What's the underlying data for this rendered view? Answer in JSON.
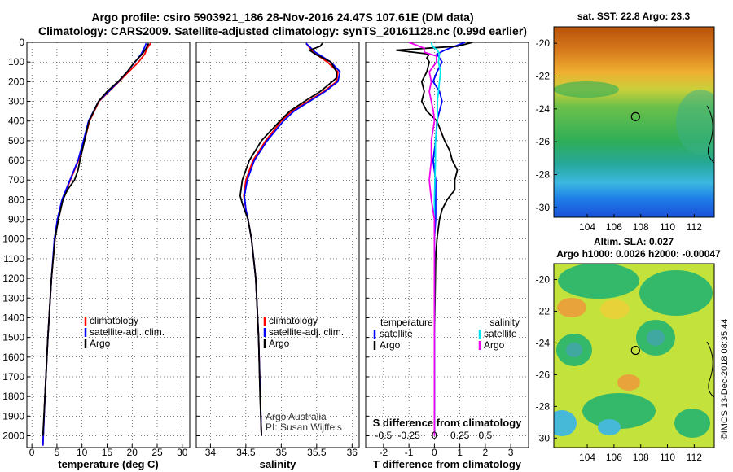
{
  "title_line1": "Argo profile: csiro 5903921_186 28-Nov-2016 24.47S 107.61E (DM data)",
  "title_line2": "Climatology: CARS2009. Satellite-adjusted climatology: synTS_20161128.nc (0.99d earlier)",
  "side_credit": "©IMOS 13-Dec-2018 08:35:44",
  "colors": {
    "climatology": "#ff0000",
    "satellite": "#0000ff",
    "argo": "#000000",
    "sat_salinity": "#00e5ee",
    "argo_salinity": "#ee00ee"
  },
  "depth_axis": {
    "ticks": [
      0,
      100,
      200,
      300,
      400,
      500,
      600,
      700,
      800,
      900,
      1000,
      1100,
      1200,
      1300,
      1400,
      1500,
      1600,
      1700,
      1800,
      1900,
      2000
    ],
    "ylim": [
      0,
      2060
    ]
  },
  "chart_data": [
    {
      "type": "line",
      "id": "temperature",
      "xlabel": "temperature (deg C)",
      "xlim": [
        -1,
        31.5
      ],
      "xticks": [
        0,
        5,
        10,
        15,
        20,
        25,
        30
      ],
      "legend": [
        "climatology",
        "satellite-adj. clim.",
        "Argo"
      ],
      "series": [
        {
          "name": "climatology",
          "depth": [
            5,
            30,
            60,
            100,
            150,
            200,
            250,
            300,
            400,
            500,
            600,
            700,
            800,
            900,
            1000,
            1200,
            1500,
            1800,
            2050
          ],
          "values": [
            23.7,
            23,
            22.5,
            21.3,
            19.3,
            17.4,
            15.4,
            13.4,
            11.5,
            10.5,
            9.3,
            7.7,
            6.1,
            5.2,
            4.6,
            3.9,
            3.2,
            2.6,
            2.2
          ]
        },
        {
          "name": "satellite-adj. clim.",
          "depth": [
            5,
            30,
            60,
            100,
            150,
            200,
            250,
            300,
            400,
            500,
            600,
            700,
            800,
            900,
            1000,
            1200,
            1500,
            1800,
            2050
          ],
          "values": [
            22.8,
            22.4,
            21.8,
            20.6,
            19,
            17.3,
            15.3,
            13.3,
            11.3,
            10.3,
            9.2,
            7.6,
            6,
            5.1,
            4.5,
            3.9,
            3.2,
            2.6,
            2.2
          ]
        },
        {
          "name": "Argo",
          "depth": [
            5,
            30,
            60,
            100,
            150,
            200,
            250,
            300,
            400,
            500,
            600,
            650,
            700,
            750,
            800,
            900,
            1000,
            1200,
            1500,
            1800,
            2000
          ],
          "values": [
            23.3,
            22.8,
            22,
            20.5,
            19,
            17.2,
            15,
            13.3,
            11.4,
            10.5,
            9.6,
            9.2,
            8.5,
            7.1,
            6.2,
            5.3,
            4.6,
            3.9,
            3.2,
            2.6,
            2.2
          ]
        }
      ]
    },
    {
      "type": "line",
      "id": "salinity",
      "xlabel": "salinity",
      "xlim": [
        33.8,
        36.1
      ],
      "xticks": [
        34,
        34.5,
        35,
        35.5,
        36
      ],
      "legend": [
        "climatology",
        "satellite-adj. clim.",
        "Argo"
      ],
      "annotation": [
        "Argo Australia",
        "PI: Susan Wijffels"
      ],
      "series": [
        {
          "name": "climatology",
          "depth": [
            5,
            50,
            100,
            150,
            200,
            250,
            300,
            350,
            400,
            500,
            600,
            700,
            780,
            850,
            900,
            1000,
            1200,
            1500,
            2000
          ],
          "values": [
            35.35,
            35.45,
            35.65,
            35.8,
            35.78,
            35.6,
            35.38,
            35.15,
            35,
            34.78,
            34.6,
            34.5,
            34.47,
            34.5,
            34.53,
            34.58,
            34.64,
            34.68,
            34.72
          ]
        },
        {
          "name": "satellite-adj. clim.",
          "depth": [
            5,
            50,
            100,
            150,
            200,
            250,
            300,
            350,
            400,
            500,
            600,
            700,
            780,
            850,
            900,
            1000,
            1200,
            1500,
            2000
          ],
          "values": [
            35.35,
            35.48,
            35.7,
            35.83,
            35.8,
            35.62,
            35.4,
            35.18,
            35.03,
            34.8,
            34.62,
            34.52,
            34.48,
            34.5,
            34.53,
            34.58,
            34.64,
            34.68,
            34.72
          ]
        },
        {
          "name": "Argo",
          "depth": [
            5,
            20,
            40,
            60,
            100,
            150,
            180,
            200,
            250,
            300,
            350,
            400,
            500,
            600,
            700,
            780,
            820,
            850,
            900,
            1000,
            1200,
            1500,
            1800,
            2000
          ],
          "values": [
            35.58,
            35.55,
            35.4,
            35.48,
            35.7,
            35.78,
            35.78,
            35.72,
            35.55,
            35.33,
            35.12,
            34.98,
            34.72,
            34.55,
            34.45,
            34.42,
            34.45,
            34.48,
            34.53,
            34.58,
            34.64,
            34.68,
            34.7,
            34.72
          ]
        }
      ]
    },
    {
      "type": "line",
      "id": "difference",
      "xlabel": "T difference from climatology",
      "xlabel2": "S difference from climatology",
      "xlim": [
        -2.7,
        3.7
      ],
      "xticks": [
        -2,
        -1,
        0,
        1,
        2,
        3
      ],
      "xticks2": [
        -0.5,
        -0.25,
        0,
        0.25,
        0.5
      ],
      "xticklabels2": [
        "-0.5",
        "-0.25",
        "0",
        "0.25",
        "0.5"
      ],
      "legend_temperature": {
        "heading": "temperature",
        "items": [
          "satellite",
          "Argo"
        ]
      },
      "legend_salinity": {
        "heading": "salinity",
        "items": [
          "satellite",
          "Argo"
        ]
      },
      "series": [
        {
          "name": "temperature satellite",
          "depth": [
            0,
            20,
            40,
            60,
            80,
            100,
            150,
            200,
            250,
            300,
            350,
            400,
            500,
            600,
            700,
            800,
            900,
            1000,
            1500,
            2000
          ],
          "values": [
            1.2,
            0.8,
            0.4,
            0.1,
            0.2,
            0.3,
            0.1,
            -0.05,
            0.2,
            0.3,
            0.2,
            0.1,
            0.05,
            -0.05,
            0.05,
            0.05,
            0.05,
            0,
            0,
            0
          ]
        },
        {
          "name": "temperature Argo",
          "depth": [
            0,
            20,
            40,
            60,
            80,
            100,
            150,
            200,
            250,
            300,
            350,
            400,
            500,
            550,
            600,
            650,
            700,
            750,
            800,
            850,
            900,
            1000,
            1100,
            1500,
            2000
          ],
          "values": [
            1.5,
            0.9,
            -1.5,
            -0.2,
            -0.3,
            -0.2,
            -0.3,
            -0.5,
            -0.4,
            -0.5,
            -0.3,
            0.1,
            0.4,
            0.6,
            0.7,
            0.9,
            0.8,
            0.8,
            0.5,
            0.3,
            0.2,
            0.1,
            0.05,
            0,
            0
          ]
        },
        {
          "name": "salinity satellite",
          "depth": [
            0,
            20,
            40,
            60,
            100,
            150,
            200,
            300,
            400,
            500,
            600,
            800,
            1000,
            1500,
            2000
          ],
          "values": [
            -0.03,
            -0.02,
            0.03,
            0.05,
            0.04,
            0.06,
            0.05,
            0.03,
            0.03,
            0.01,
            0.01,
            0,
            0,
            0,
            0
          ]
        },
        {
          "name": "salinity Argo",
          "depth": [
            0,
            10,
            30,
            50,
            70,
            100,
            150,
            200,
            250,
            300,
            350,
            400,
            500,
            600,
            700,
            800,
            900,
            1000,
            1500,
            2000
          ],
          "values": [
            -0.25,
            -0.2,
            -0.1,
            -0.1,
            0.02,
            0.02,
            -0.05,
            -0.03,
            -0.05,
            -0.03,
            -0.01,
            0,
            -0.03,
            -0.03,
            -0.05,
            -0.03,
            0,
            0,
            0,
            0
          ]
        }
      ]
    },
    {
      "type": "heatmap",
      "id": "sst_map",
      "title": "sat. SST: 22.8 Argo: 23.3",
      "xlim": [
        101.5,
        113.5
      ],
      "ylim": [
        -30.6,
        -19
      ],
      "xticks": [
        104,
        106,
        108,
        110,
        112
      ],
      "yticks": [
        -20,
        -22,
        -24,
        -26,
        -28,
        -30
      ],
      "marker": {
        "lon": 107.61,
        "lat": -24.47
      }
    },
    {
      "type": "heatmap",
      "id": "sla_map",
      "title": "Altim. SLA: 0.027",
      "subtitle": "Argo h1000: 0.0026 h2000: -0.00047",
      "xlim": [
        101.5,
        113.5
      ],
      "ylim": [
        -30.6,
        -19
      ],
      "xticks": [
        104,
        106,
        108,
        110,
        112
      ],
      "yticks": [
        -20,
        -22,
        -24,
        -26,
        -28,
        -30
      ],
      "marker": {
        "lon": 107.61,
        "lat": -24.47
      }
    }
  ]
}
